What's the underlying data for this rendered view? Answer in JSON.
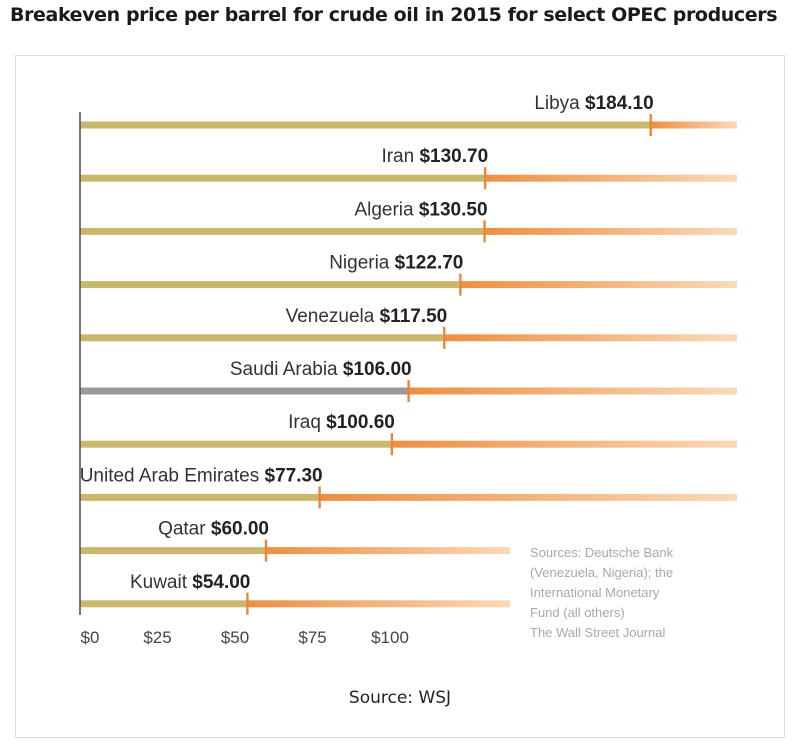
{
  "title": "Breakeven price per barrel for crude oil in 2015 for select OPEC producers",
  "footer": "Source: WSJ",
  "source_note": [
    "Sources: Deutsche Bank",
    "(Venezuela, Nigeria); the",
    "International Monetary",
    "Fund (all others)",
    "The Wall Street Journal"
  ],
  "colors": {
    "bar": "#c9b86c",
    "highlight_bar": "#9a9a9a",
    "marker": "#e8873a",
    "extension": "#f2a865",
    "extension_light": "#f8d3ad",
    "axis": "#555555"
  },
  "chart_data": {
    "type": "bar",
    "orientation": "horizontal",
    "categories": [
      "Libya",
      "Iran",
      "Algeria",
      "Nigeria",
      "Venezuela",
      "Saudi Arabia",
      "Iraq",
      "United Arab Emirates",
      "Qatar",
      "Kuwait"
    ],
    "value_labels": [
      "$184.10",
      "$130.70",
      "$130.50",
      "$122.70",
      "$117.50",
      "$106.00",
      "$100.60",
      "$77.30",
      "$60.00",
      "$54.00"
    ],
    "values": [
      184.1,
      130.7,
      130.5,
      122.7,
      117.5,
      106.0,
      100.6,
      77.3,
      60.0,
      54.0
    ],
    "highlight": "Saudi Arabia",
    "x_ticks": [
      0,
      25,
      50,
      75,
      100
    ],
    "x_tick_labels": [
      "$0",
      "$25",
      "$50",
      "$75",
      "$100"
    ],
    "xlim": [
      0,
      230
    ],
    "grid": false,
    "legend": "none"
  }
}
